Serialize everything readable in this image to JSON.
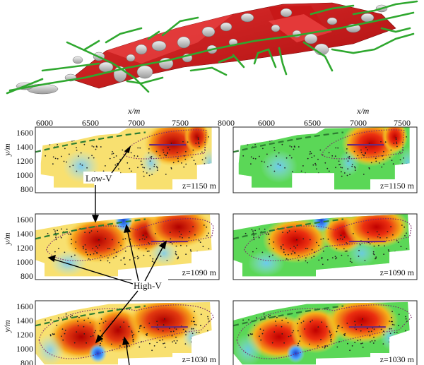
{
  "x_axis": {
    "title": "x/m",
    "ticks": [
      "6000",
      "6500",
      "7000",
      "7500",
      "8000"
    ]
  },
  "y_axis": {
    "title": "y/m",
    "ticks": [
      "1600",
      "1400",
      "1200",
      "1000",
      "800"
    ]
  },
  "annotations": {
    "low_v": "Low-V",
    "high_v": "High-V"
  },
  "panels": [
    {
      "id": "left-1150",
      "z_label": "z=1150 m"
    },
    {
      "id": "right-1150",
      "z_label": "z=1150 m"
    },
    {
      "id": "left-1090",
      "z_label": "z=1090 m"
    },
    {
      "id": "right-1090",
      "z_label": "z=1090 m"
    },
    {
      "id": "left-1030",
      "z_label": "z=1030 m"
    },
    {
      "id": "right-1030",
      "z_label": "z=1030 m"
    }
  ],
  "colors": {
    "tunnel": "#2fa82f",
    "orebody": "#d01818",
    "cavity": "#bfbfbf",
    "fault": "#2e7d32",
    "outline": "#7a2a6a"
  }
}
